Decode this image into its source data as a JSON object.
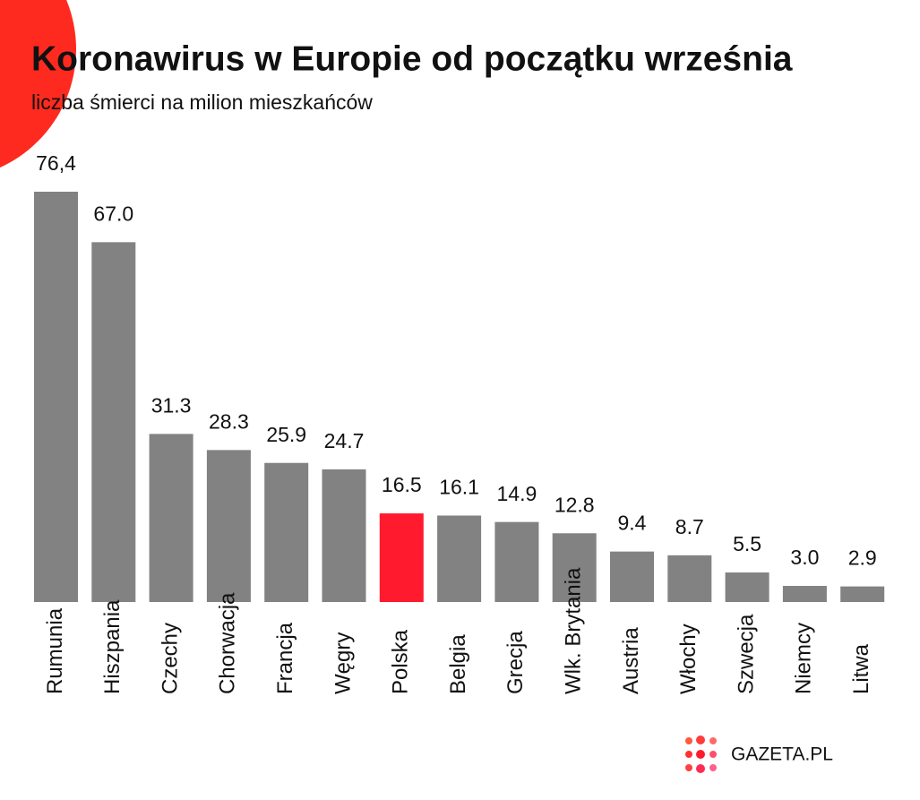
{
  "chart_data": {
    "type": "bar",
    "title": "Koronawirus w Europie od początku września",
    "subtitle": "liczba śmierci na milion mieszkańców",
    "categories": [
      "Rumunia",
      "Hiszpania",
      "Czechy",
      "Chorwacja",
      "Francja",
      "Węgry",
      "Polska",
      "Belgia",
      "Grecja",
      "Wlk. Brytania",
      "Austria",
      "Włochy",
      "Szwecja",
      "Niemcy",
      "Litwa"
    ],
    "values": [
      76.4,
      67.0,
      31.3,
      28.3,
      25.9,
      24.7,
      16.5,
      16.1,
      14.9,
      12.8,
      9.4,
      8.7,
      5.5,
      3.0,
      2.9
    ],
    "value_labels": [
      "76,4",
      "67.0",
      "31.3",
      "28.3",
      "25.9",
      "24.7",
      "16.5",
      "16.1",
      "14.9",
      "12.8",
      "9.4",
      "8.7",
      "5.5",
      "3.0",
      "2.9"
    ],
    "colors": [
      "#828282",
      "#828282",
      "#828282",
      "#828282",
      "#828282",
      "#828282",
      "#ff1a2e",
      "#828282",
      "#828282",
      "#828282",
      "#828282",
      "#828282",
      "#828282",
      "#828282",
      "#828282"
    ],
    "logo": "GAZETA.PL"
  }
}
